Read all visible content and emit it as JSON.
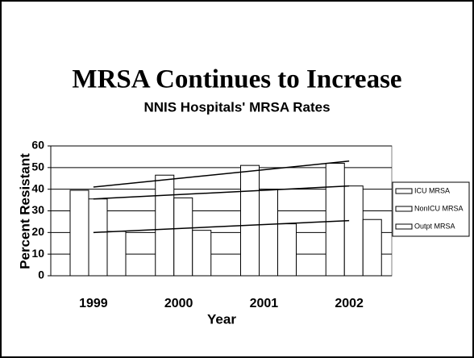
{
  "chart_data": {
    "type": "bar",
    "title": "MRSA Continues to Increase",
    "subtitle": "NNIS Hospitals' MRSA Rates",
    "x_label": "Year",
    "y_label": "Percent Resistant",
    "categories": [
      "1999",
      "2000",
      "2001",
      "2002"
    ],
    "series": [
      {
        "name": "ICU MRSA",
        "color": "#ffffff",
        "values": [
          39.5,
          46.5,
          51,
          52
        ],
        "trendline": [
          41,
          53
        ]
      },
      {
        "name": "NonICU MRSA",
        "color": "#ffffff",
        "values": [
          35.5,
          36,
          40,
          41.5
        ],
        "trendline": [
          35.5,
          41.5
        ]
      },
      {
        "name": "Outpt MRSA",
        "color": "#ffffff",
        "values": [
          20.5,
          21,
          24,
          26
        ],
        "trendline": [
          20,
          25.5
        ]
      }
    ],
    "ylim": [
      0,
      60
    ],
    "yticks": [
      0,
      10,
      20,
      30,
      40,
      50,
      60
    ],
    "grid": true,
    "legend": "right"
  }
}
